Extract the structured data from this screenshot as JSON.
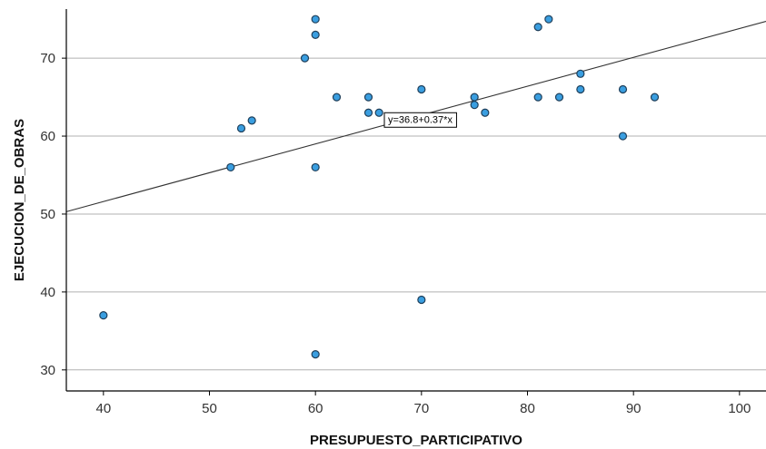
{
  "chart_data": {
    "type": "scatter",
    "title": "",
    "xlabel": "PRESUPUESTO_PARTICIPATIVO",
    "ylabel": "EJECUCION_DE_OBRAS",
    "xlim": [
      36.5,
      102.5
    ],
    "ylim": [
      27.3,
      76.3
    ],
    "xticks": [
      40,
      50,
      60,
      70,
      80,
      90,
      100
    ],
    "yticks": [
      30,
      40,
      50,
      60,
      70
    ],
    "grid": "horizontal",
    "legend": "none",
    "points": [
      {
        "x": 40,
        "y": 37
      },
      {
        "x": 52,
        "y": 56
      },
      {
        "x": 53,
        "y": 61
      },
      {
        "x": 54,
        "y": 62
      },
      {
        "x": 59,
        "y": 70
      },
      {
        "x": 60,
        "y": 75
      },
      {
        "x": 60,
        "y": 73
      },
      {
        "x": 60,
        "y": 56
      },
      {
        "x": 60,
        "y": 32
      },
      {
        "x": 62,
        "y": 65
      },
      {
        "x": 65,
        "y": 65
      },
      {
        "x": 65,
        "y": 63
      },
      {
        "x": 66,
        "y": 63
      },
      {
        "x": 70,
        "y": 66
      },
      {
        "x": 70,
        "y": 39
      },
      {
        "x": 75,
        "y": 65
      },
      {
        "x": 75,
        "y": 64
      },
      {
        "x": 76,
        "y": 63
      },
      {
        "x": 81,
        "y": 74
      },
      {
        "x": 82,
        "y": 75
      },
      {
        "x": 81,
        "y": 65
      },
      {
        "x": 83,
        "y": 65
      },
      {
        "x": 85,
        "y": 68
      },
      {
        "x": 85,
        "y": 66
      },
      {
        "x": 89,
        "y": 66
      },
      {
        "x": 89,
        "y": 60
      },
      {
        "x": 92,
        "y": 65
      }
    ],
    "fit_line": {
      "intercept": 36.8,
      "slope": 0.37,
      "label": "y=36.8+0.37*x",
      "label_anchor": {
        "x": 66.5,
        "y": 63
      }
    },
    "colors": {
      "point_fill": "#3a9ee0",
      "point_stroke": "#1f3f5a",
      "line": "#333333",
      "grid": "#b0b0b0",
      "axis": "#000000"
    }
  }
}
